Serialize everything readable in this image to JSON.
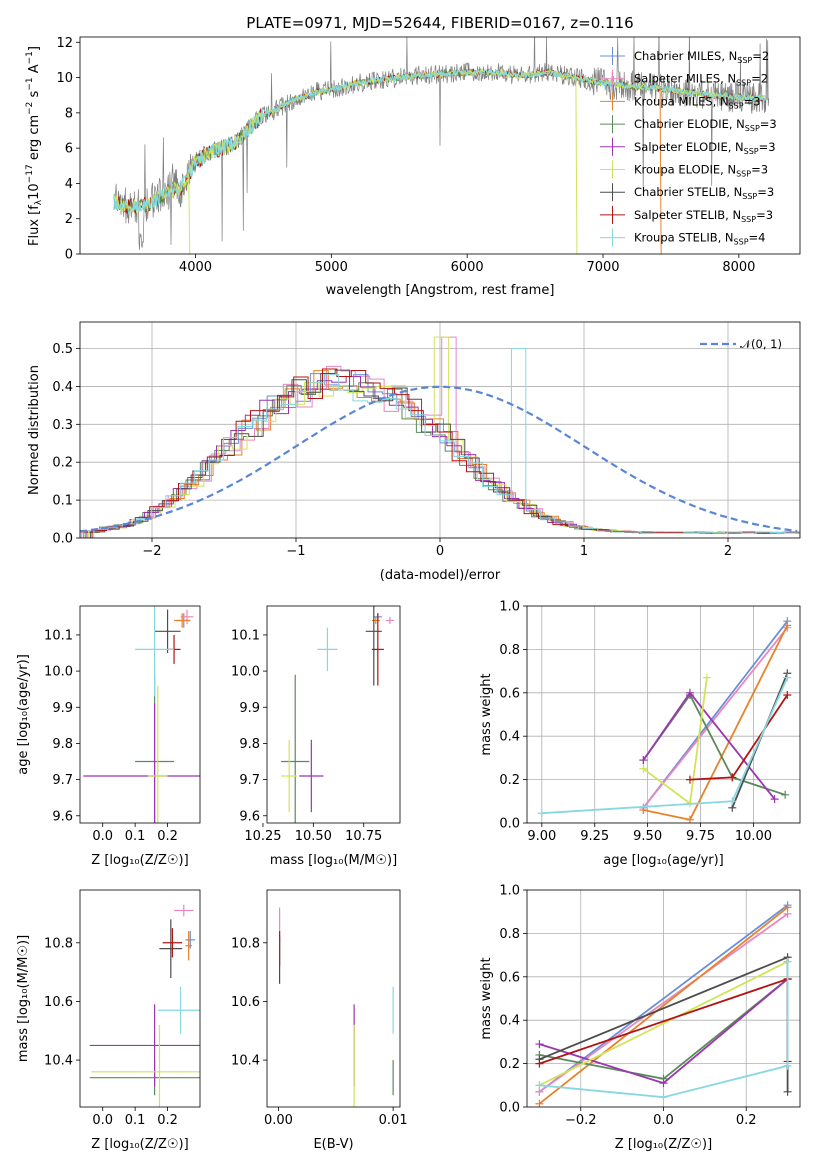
{
  "figure_title": "PLATE=0971, MJD=52644, FIBERID=0167, z=0.116",
  "colors": {
    "Chabrier MILES": "#6b8fd6",
    "Salpeter MILES": "#e887c0",
    "Kroupa MILES": "#e8822a",
    "Chabrier ELODIE": "#5a8a5a",
    "Salpeter ELODIE": "#9b35b0",
    "Kroupa ELODIE": "#d2e35a",
    "Chabrier STELIB": "#4d4d4d",
    "Salpeter STELIB": "#b01515",
    "Kroupa STELIB": "#86d8e0",
    "data": "#7f7f7f",
    "normal": "#5b86d6"
  },
  "chart_data": [
    {
      "id": "spectrum",
      "type": "line",
      "title": "PLATE=0971, MJD=52644, FIBERID=0167, z=0.116",
      "xlabel": "wavelength [Angstrom, rest frame]",
      "ylabel": "Flux [f_λ10^-17 erg cm^-2 s^-1 A^-1]",
      "xlim": [
        3150,
        8450
      ],
      "ylim": [
        0,
        12.3
      ],
      "xticks": [
        4000,
        5000,
        6000,
        7000,
        8000
      ],
      "yticks": [
        0,
        2,
        4,
        6,
        8,
        10,
        12
      ],
      "continuum": {
        "x": [
          3400,
          3500,
          3600,
          3700,
          3800,
          3900,
          4000,
          4100,
          4200,
          4300,
          4400,
          4500,
          4600,
          4700,
          4800,
          4900,
          5000,
          5200,
          5400,
          5600,
          5800,
          6000,
          6200,
          6400,
          6600,
          6800,
          7000,
          7200,
          7400,
          7600,
          7800,
          8000,
          8200
        ],
        "y": [
          3.0,
          2.7,
          2.7,
          3.0,
          3.6,
          3.8,
          5.2,
          5.8,
          6.0,
          6.3,
          7.2,
          7.9,
          8.2,
          8.7,
          8.9,
          9.2,
          9.3,
          9.7,
          9.9,
          10.1,
          10.2,
          10.3,
          10.3,
          10.1,
          10.3,
          10.0,
          9.7,
          9.5,
          9.4,
          9.2,
          9.0,
          8.9,
          8.8
        ]
      },
      "legend": [
        {
          "name": "Chabrier MILES",
          "n_ssp": "2"
        },
        {
          "name": "Salpeter MILES",
          "n_ssp": "2"
        },
        {
          "name": "Kroupa MILES",
          "n_ssp": "3"
        },
        {
          "name": "Chabrier ELODIE",
          "n_ssp": "3"
        },
        {
          "name": "Salpeter ELODIE",
          "n_ssp": "3"
        },
        {
          "name": "Kroupa ELODIE",
          "n_ssp": "3"
        },
        {
          "name": "Chabrier STELIB",
          "n_ssp": "3"
        },
        {
          "name": "Salpeter STELIB",
          "n_ssp": "3"
        },
        {
          "name": "Kroupa STELIB",
          "n_ssp": "4"
        }
      ],
      "legend_position": "upper right"
    },
    {
      "id": "residuals",
      "type": "histogram",
      "xlabel": "(data-model)/error",
      "ylabel": "Normed distribution",
      "xlim": [
        -2.5,
        2.5
      ],
      "ylim": [
        0,
        0.57
      ],
      "xticks": [
        -2,
        -1,
        0,
        1,
        2
      ],
      "yticks": [
        0.0,
        0.1,
        0.2,
        0.3,
        0.4,
        0.5
      ],
      "grid": true,
      "normal_label": "𝒩(0, 1)",
      "bin_width": 0.1,
      "base_heights": [
        0.015,
        0.017,
        0.022,
        0.026,
        0.03,
        0.034,
        0.038,
        0.045,
        0.055,
        0.066,
        0.078,
        0.09,
        0.104,
        0.118,
        0.134,
        0.15,
        0.168,
        0.186,
        0.205,
        0.225,
        0.244,
        0.262,
        0.28,
        0.298,
        0.313,
        0.328,
        0.342,
        0.356,
        0.368,
        0.378,
        0.388,
        0.395,
        0.402,
        0.407,
        0.41,
        0.411,
        0.411,
        0.409,
        0.405,
        0.4,
        0.393,
        0.385,
        0.375,
        0.364,
        0.352,
        0.339,
        0.324,
        0.309,
        0.293,
        0.275,
        0.258,
        0.24,
        0.222,
        0.204,
        0.186,
        0.168,
        0.151,
        0.135,
        0.12,
        0.106,
        0.093,
        0.081,
        0.07,
        0.06,
        0.052,
        0.045,
        0.039,
        0.034,
        0.03,
        0.026,
        0.023,
        0.021,
        0.019,
        0.018,
        0.017,
        0.016,
        0.015,
        0.015,
        0.014,
        0.014,
        0.014,
        0.014,
        0.014,
        0.014,
        0.014,
        0.014,
        0.014,
        0.014,
        0.014,
        0.014,
        0.014,
        0.014,
        0.014,
        0.014,
        0.014,
        0.014,
        0.014,
        0.014,
        0.014,
        0.014
      ]
    },
    {
      "id": "age_vs_Z",
      "type": "errorbar",
      "xlabel": "Z [log₁₀(Z/Z☉)]",
      "ylabel": "age  [log₁₀(age/yr)]",
      "xlim": [
        -0.07,
        0.3
      ],
      "ylim": [
        9.58,
        10.18
      ],
      "xticks": [
        0.0,
        0.1,
        0.2
      ],
      "yticks": [
        9.6,
        9.7,
        9.8,
        9.9,
        10.0,
        10.1
      ],
      "points": [
        {
          "series": "Chabrier MILES",
          "x": 0.25,
          "y": 10.14,
          "xerr": 0.02,
          "yerr": 0.02
        },
        {
          "series": "Salpeter MILES",
          "x": 0.26,
          "y": 10.15,
          "xerr": 0.02,
          "yerr": 0.02
        },
        {
          "series": "Kroupa MILES",
          "x": 0.245,
          "y": 10.14,
          "xerr": 0.025,
          "yerr": 0.02
        },
        {
          "series": "Chabrier ELODIE",
          "x": 0.16,
          "y": 9.75,
          "xerr": 0.06,
          "yerr": 0.24
        },
        {
          "series": "Salpeter ELODIE",
          "x": 0.16,
          "y": 9.71,
          "xerr": 0.22,
          "yerr": 0.2
        },
        {
          "series": "Kroupa ELODIE",
          "x": 0.17,
          "y": 9.71,
          "xerr": 0.03,
          "yerr": 0.25
        },
        {
          "series": "Chabrier STELIB",
          "x": 0.2,
          "y": 10.11,
          "xerr": 0.04,
          "yerr": 0.06
        },
        {
          "series": "Salpeter STELIB",
          "x": 0.22,
          "y": 10.06,
          "xerr": 0.02,
          "yerr": 0.04
        },
        {
          "series": "Kroupa STELIB",
          "x": 0.16,
          "y": 10.06,
          "xerr": 0.06,
          "yerr": 0.13
        }
      ]
    },
    {
      "id": "age_vs_mass",
      "type": "errorbar",
      "xlabel": "mass [log₁₀(M/M☉)]",
      "ylabel": "",
      "xlim": [
        10.27,
        10.93
      ],
      "ylim": [
        9.58,
        10.18
      ],
      "xticks": [
        10.25,
        10.5,
        10.75
      ],
      "yticks": [
        9.6,
        9.7,
        9.8,
        9.9,
        10.0,
        10.1
      ],
      "points": [
        {
          "series": "Chabrier MILES",
          "x": 10.82,
          "y": 10.15,
          "xerr": 0.02,
          "yerr": 0.01
        },
        {
          "series": "Salpeter MILES",
          "x": 10.88,
          "y": 10.14,
          "xerr": 0.02,
          "yerr": 0.01
        },
        {
          "series": "Kroupa MILES",
          "x": 10.81,
          "y": 10.14,
          "xerr": 0.02,
          "yerr": 0.01
        },
        {
          "series": "Chabrier ELODIE",
          "x": 10.41,
          "y": 9.75,
          "xerr": 0.07,
          "yerr": 0.24
        },
        {
          "series": "Salpeter ELODIE",
          "x": 10.49,
          "y": 9.71,
          "xerr": 0.06,
          "yerr": 0.1
        },
        {
          "series": "Kroupa ELODIE",
          "x": 10.38,
          "y": 9.71,
          "xerr": 0.04,
          "yerr": 0.1
        },
        {
          "series": "Chabrier STELIB",
          "x": 10.8,
          "y": 10.11,
          "xerr": 0.04,
          "yerr": 0.15
        },
        {
          "series": "Salpeter STELIB",
          "x": 10.82,
          "y": 10.06,
          "xerr": 0.03,
          "yerr": 0.1
        },
        {
          "series": "Kroupa STELIB",
          "x": 10.57,
          "y": 10.06,
          "xerr": 0.05,
          "yerr": 0.06
        }
      ]
    },
    {
      "id": "weight_vs_age",
      "type": "line",
      "xlabel": "age  [log₁₀(age/yr)]",
      "ylabel": "mass weight",
      "xlim": [
        8.93,
        10.22
      ],
      "ylim": [
        0,
        1.0
      ],
      "xticks": [
        9.0,
        9.25,
        9.5,
        9.75,
        10.0
      ],
      "yticks": [
        0.0,
        0.2,
        0.4,
        0.6,
        0.8,
        1.0
      ],
      "grid": true,
      "series": [
        {
          "name": "Chabrier MILES",
          "x": [
            9.48,
            10.16
          ],
          "y": [
            0.07,
            0.93
          ]
        },
        {
          "name": "Salpeter MILES",
          "x": [
            9.48,
            10.16
          ],
          "y": [
            0.07,
            0.9
          ]
        },
        {
          "name": "Kroupa MILES",
          "x": [
            9.48,
            9.7,
            10.16
          ],
          "y": [
            0.06,
            0.015,
            0.91
          ]
        },
        {
          "name": "Chabrier ELODIE",
          "x": [
            9.48,
            9.7,
            9.9,
            10.15
          ],
          "y": [
            0.29,
            0.59,
            0.21,
            0.13
          ]
        },
        {
          "name": "Salpeter ELODIE",
          "x": [
            9.48,
            9.7,
            10.1
          ],
          "y": [
            0.29,
            0.6,
            0.11
          ]
        },
        {
          "name": "Kroupa ELODIE",
          "x": [
            9.48,
            9.7,
            9.78
          ],
          "y": [
            0.25,
            0.09,
            0.67
          ]
        },
        {
          "name": "Chabrier STELIB",
          "x": [
            9.9,
            10.16
          ],
          "y": [
            0.07,
            0.69
          ]
        },
        {
          "name": "Salpeter STELIB",
          "x": [
            9.7,
            9.9,
            10.16
          ],
          "y": [
            0.2,
            0.21,
            0.59
          ]
        },
        {
          "name": "Kroupa STELIB",
          "x": [
            9.0,
            9.9,
            10.16
          ],
          "y": [
            0.045,
            0.1,
            0.67
          ]
        }
      ]
    },
    {
      "id": "mass_vs_Z",
      "type": "errorbar",
      "xlabel": "Z [log₁₀(Z/Z☉)]",
      "ylabel": "mass [log₁₀(M/M☉)]",
      "xlim": [
        -0.07,
        0.3
      ],
      "ylim": [
        10.24,
        10.98
      ],
      "xticks": [
        0.0,
        0.1,
        0.2
      ],
      "yticks": [
        10.4,
        10.6,
        10.8
      ],
      "points": [
        {
          "series": "Chabrier MILES",
          "x": 0.27,
          "y": 10.81,
          "xerr": 0.015,
          "yerr": 0.03
        },
        {
          "series": "Salpeter MILES",
          "x": 0.25,
          "y": 10.91,
          "xerr": 0.03,
          "yerr": 0.02
        },
        {
          "series": "Kroupa MILES",
          "x": 0.265,
          "y": 10.79,
          "xerr": 0.01,
          "yerr": 0.05
        },
        {
          "series": "Chabrier ELODIE",
          "x": 0.16,
          "y": 10.34,
          "xerr": 0.2,
          "yerr": 0.06
        },
        {
          "series": "Salpeter ELODIE",
          "x": 0.16,
          "y": 10.45,
          "xerr": 0.2,
          "yerr": 0.14
        },
        {
          "series": "Kroupa ELODIE",
          "x": 0.175,
          "y": 10.36,
          "xerr": 0.21,
          "yerr": 0.16
        },
        {
          "series": "Chabrier STELIB",
          "x": 0.21,
          "y": 10.78,
          "xerr": 0.035,
          "yerr": 0.1
        },
        {
          "series": "Salpeter STELIB",
          "x": 0.215,
          "y": 10.8,
          "xerr": 0.03,
          "yerr": 0.05
        },
        {
          "series": "Kroupa STELIB",
          "x": 0.24,
          "y": 10.57,
          "xerr": 0.07,
          "yerr": 0.08
        }
      ]
    },
    {
      "id": "mass_vs_ebv",
      "type": "errorbar",
      "xlabel": "E(B-V)",
      "ylabel": "",
      "xlim": [
        -0.001,
        0.0106
      ],
      "ylim": [
        10.24,
        10.98
      ],
      "xticks": [
        0.0,
        0.01
      ],
      "xticklabels": [
        "0.00",
        "0.01"
      ],
      "yticks": [
        10.4,
        10.6,
        10.8
      ],
      "points": [
        {
          "series": "Salpeter MILES",
          "x": 0.0001,
          "y": 10.86,
          "xerr": 0,
          "yerr": 0.06
        },
        {
          "series": "Salpeter STELIB",
          "x": 0.0001,
          "y": 10.78,
          "xerr": 0,
          "yerr": 0.06
        },
        {
          "series": "Chabrier STELIB",
          "x": 0.0001,
          "y": 10.74,
          "xerr": 0,
          "yerr": 0.08
        },
        {
          "series": "Salpeter ELODIE",
          "x": 0.0066,
          "y": 10.45,
          "xerr": 0,
          "yerr": 0.14
        },
        {
          "series": "Kroupa ELODIE",
          "x": 0.0066,
          "y": 10.36,
          "xerr": 0,
          "yerr": 0.16
        },
        {
          "series": "Chabrier ELODIE",
          "x": 0.01,
          "y": 10.34,
          "xerr": 0,
          "yerr": 0.06
        },
        {
          "series": "Kroupa STELIB",
          "x": 0.01,
          "y": 10.57,
          "xerr": 0,
          "yerr": 0.08
        }
      ]
    },
    {
      "id": "weight_vs_Z",
      "type": "line",
      "xlabel": "Z [log₁₀(Z/Z☉)]",
      "ylabel": "mass weight",
      "xlim": [
        -0.33,
        0.33
      ],
      "ylim": [
        0,
        1.0
      ],
      "xticks": [
        -0.2,
        0.0,
        0.2
      ],
      "yticks": [
        0.0,
        0.2,
        0.4,
        0.6,
        0.8,
        1.0
      ],
      "grid": true,
      "series": [
        {
          "name": "Chabrier MILES",
          "x": [
            -0.3,
            0.3
          ],
          "y": [
            0.07,
            0.93
          ]
        },
        {
          "name": "Salpeter MILES",
          "x": [
            -0.3,
            0.3
          ],
          "y": [
            0.07,
            0.89
          ]
        },
        {
          "name": "Kroupa MILES",
          "x": [
            -0.3,
            0.3
          ],
          "y": [
            0.015,
            0.92
          ]
        },
        {
          "name": "Chabrier ELODIE",
          "x": [
            -0.3,
            0.0,
            0.3
          ],
          "y": [
            0.24,
            0.13,
            0.59
          ]
        },
        {
          "name": "Salpeter ELODIE",
          "x": [
            -0.3,
            0.0,
            0.3
          ],
          "y": [
            0.29,
            0.11,
            0.59
          ]
        },
        {
          "name": "Kroupa ELODIE",
          "x": [
            -0.3,
            0.3
          ],
          "y": [
            0.1,
            0.67
          ]
        },
        {
          "name": "Chabrier STELIB",
          "x": [
            -0.3,
            0.3,
            0.3
          ],
          "y": [
            0.22,
            0.69,
            0.07
          ]
        },
        {
          "name": "Salpeter STELIB",
          "x": [
            -0.3,
            0.3,
            0.3
          ],
          "y": [
            0.2,
            0.59,
            0.21
          ]
        },
        {
          "name": "Kroupa STELIB",
          "x": [
            -0.3,
            0.0,
            0.3,
            0.3
          ],
          "y": [
            0.1,
            0.045,
            0.19,
            0.67
          ]
        }
      ]
    }
  ]
}
